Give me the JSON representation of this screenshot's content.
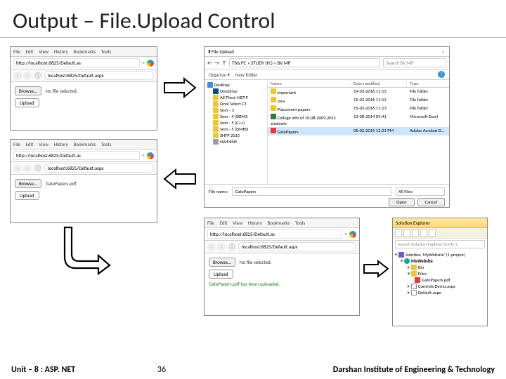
{
  "title": "Output – File.Upload Control",
  "footer": {
    "left": "Unit – 8 : ASP. NET",
    "page": "36",
    "right": "Darshan Institute of Engineering & Technology"
  },
  "browser_menu": {
    "file": "File",
    "edit": "Edit",
    "view": "View",
    "history": "History",
    "bookmarks": "Bookmarks",
    "tools": "Tools"
  },
  "b1": {
    "tab": "http://localhost:6825/Default.as",
    "url": "localhost:6825/Default.aspx",
    "browse": "Browse…",
    "nofile": "No file selected.",
    "upload": "Upload"
  },
  "b2": {
    "tab": "http://localhost:6825/Default.as",
    "url": "localhost:6825/Default.aspx",
    "browse": "Browse…",
    "file": "GatePapers.pdf",
    "upload": "Upload"
  },
  "b3": {
    "tab": "http://localhost:6825/Default.as",
    "url": "localhost:6825/Default.aspx",
    "browse": "Browse…",
    "nofile": "No file selected.",
    "upload": "Upload",
    "msg": "GatePapers.pdf has been uploaded."
  },
  "fd": {
    "title": "File Upload",
    "breadcrumb": "This PC » STUDY (H:) » BV MP",
    "search": "Search BV MP",
    "organize": "Organize ▾",
    "newfolder": "New folder",
    "side": [
      {
        "label": "Desktop",
        "cls": "desk"
      },
      {
        "label": "OneDrive",
        "cls": "one",
        "sub": true
      },
      {
        "label": "All Third .NET-F",
        "cls": "folder",
        "sub": true
      },
      {
        "label": "Final Select CT",
        "cls": "folder",
        "sub": true
      },
      {
        "label": "Sem - 3",
        "cls": "folder",
        "sub": true
      },
      {
        "label": "Sem - 4 [DBMS",
        "cls": "folder",
        "sub": true
      },
      {
        "label": "Sem - 5 (C++)",
        "cls": "folder",
        "sub": true
      },
      {
        "label": "Sem - 5 [DMBD",
        "cls": "folder",
        "sub": true
      },
      {
        "label": "SHTP 2015",
        "cls": "folder",
        "sub": true
      },
      {
        "label": "NAIMISH",
        "cls": "drive",
        "sub": true
      }
    ],
    "cols": {
      "name": "Name",
      "date": "Date modified",
      "type": "Type"
    },
    "rows": [
      {
        "name": "Important",
        "date": "19-03-2016 11:13",
        "type": "File folder",
        "cls": "folder"
      },
      {
        "name": "Java",
        "date": "15-03-2016 11:13",
        "type": "File folder",
        "cls": "folder"
      },
      {
        "name": "Placement papers",
        "date": "15-03-2016 11:13",
        "type": "File folder",
        "cls": "folder"
      },
      {
        "name": "College info of 10,08,2009,2011 students",
        "date": "13-08-2014 09:41",
        "type": "Microsoft Excel",
        "cls": "xls"
      },
      {
        "name": "GatePapers",
        "date": "06-02-2015 12:21 PM",
        "type": "Adobe Acrobat D…",
        "cls": "pdf",
        "sel": true
      }
    ],
    "filename_label": "File name:",
    "filename": "GatePapers",
    "filter": "All Files",
    "open": "Open",
    "cancel": "Cancel"
  },
  "se": {
    "title": "Solution Explorer",
    "search": "Search Solution Explorer (Ctrl+;)",
    "sol": "Solution 'MyWebsite' (1 project)",
    "proj": "MyWebsite",
    "bin": "Bin",
    "files": "Files",
    "gate": "GatePapers.pdf",
    "controls": "Controls Demo.aspx",
    "default": "Default.aspx"
  }
}
